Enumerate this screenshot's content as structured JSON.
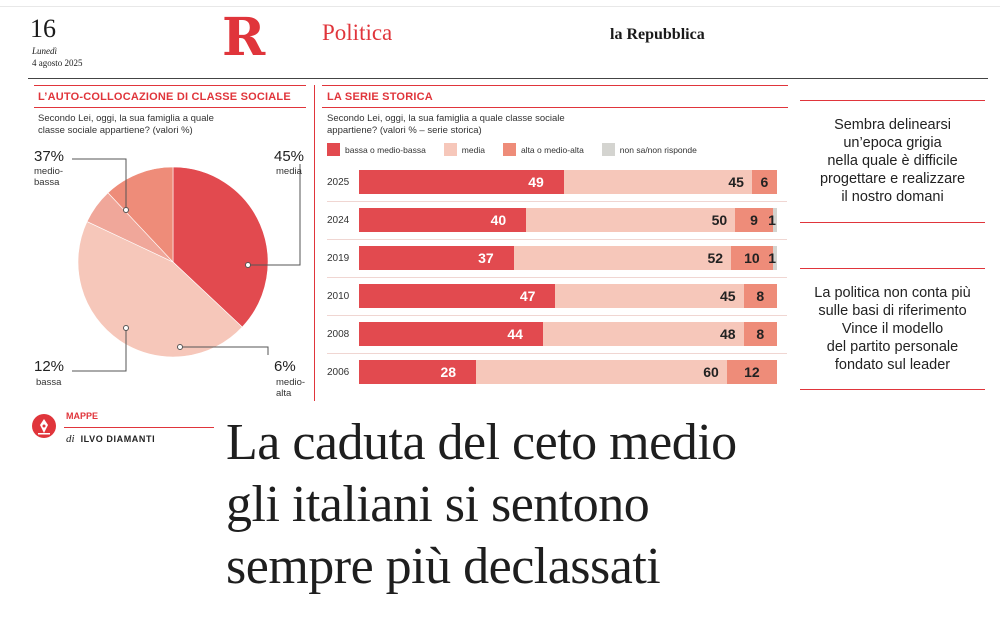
{
  "masthead": {
    "page_number": "16",
    "day": "Lunedì",
    "date": "4 agosto 2025",
    "logo_letter": "R",
    "section": "Politica",
    "newspaper": "la Repubblica"
  },
  "pie_section": {
    "title": "L’AUTO-COLLOCAZIONE DI CLASSE SOCIALE",
    "question_line1": "Secondo Lei, oggi, la sua famiglia a quale",
    "question_line2": "classe sociale appartiene? (valori %)",
    "labels": {
      "medio_bassa_pct": "37%",
      "medio_bassa_txt1": "medio-",
      "medio_bassa_txt2": "bassa",
      "media_pct": "45%",
      "media_txt": "media",
      "bassa_pct": "12%",
      "bassa_txt": "bassa",
      "medio_alta_pct": "6%",
      "medio_alta_txt1": "medio-",
      "medio_alta_txt2": "alta"
    }
  },
  "bar_section": {
    "title": "LA SERIE STORICA",
    "question_line1": "Secondo Lei, oggi, la sua famiglia a quale classe sociale",
    "question_line2": "appartiene? (valori % – serie storica)"
  },
  "chart_data": [
    {
      "type": "pie",
      "title": "L’AUTO-COLLOCAZIONE DI CLASSE SOCIALE",
      "categories": [
        "medio-bassa",
        "media",
        "medio-alta",
        "bassa"
      ],
      "values": [
        37,
        45,
        6,
        12
      ],
      "colors": [
        "#e24a4f",
        "#f6c7ba",
        "#f0a79a",
        "#ee8c79"
      ]
    },
    {
      "type": "bar",
      "orientation": "horizontal-stacked",
      "title": "LA SERIE STORICA",
      "categories": [
        "2025",
        "2024",
        "2019",
        "2010",
        "2008",
        "2006"
      ],
      "series": [
        {
          "name": "bassa o medio-bassa",
          "color": "#e24a4f",
          "values": [
            49,
            40,
            37,
            47,
            44,
            28
          ]
        },
        {
          "name": "media",
          "color": "#f6c7ba",
          "values": [
            45,
            50,
            52,
            45,
            48,
            60
          ]
        },
        {
          "name": "alta o medio-alta",
          "color": "#ee8c79",
          "values": [
            6,
            9,
            10,
            8,
            8,
            12
          ]
        },
        {
          "name": "non sa/non risponde",
          "color": "#d4d4d0",
          "values": [
            0,
            1,
            1,
            0,
            0,
            0
          ]
        }
      ]
    }
  ],
  "quotes": [
    {
      "lines": [
        "Sembra delinearsi",
        "un’epoca grigia",
        "nella quale è difficile",
        "progettare e realizzare",
        "il nostro domani"
      ]
    },
    {
      "lines": [
        "La politica non conta più",
        "sulle basi di riferimento",
        "Vince il modello",
        "del partito personale",
        "fondato sul leader"
      ]
    }
  ],
  "byline": {
    "column": "MAPPE",
    "prefix": "di",
    "author": "ILVO DIAMANTI"
  },
  "headline": {
    "line1": "La caduta del ceto medio",
    "line2": "gli italiani si sentono",
    "line3": "sempre più declassati"
  }
}
